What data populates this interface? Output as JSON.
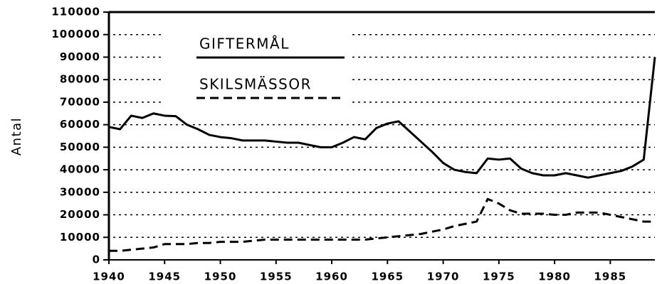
{
  "chart_data": {
    "type": "line",
    "y_label": "Antal",
    "x": [
      1940,
      1941,
      1942,
      1943,
      1944,
      1945,
      1946,
      1947,
      1948,
      1949,
      1950,
      1951,
      1952,
      1953,
      1954,
      1955,
      1956,
      1957,
      1958,
      1959,
      1960,
      1961,
      1962,
      1963,
      1964,
      1965,
      1966,
      1967,
      1968,
      1969,
      1970,
      1971,
      1972,
      1973,
      1974,
      1975,
      1976,
      1977,
      1978,
      1979,
      1980,
      1981,
      1982,
      1983,
      1984,
      1985,
      1986,
      1987,
      1988,
      1989
    ],
    "series": [
      {
        "name": "GIFTERMÅL",
        "color": "#000000",
        "style": "solid",
        "values": [
          59000,
          58000,
          64000,
          63000,
          65000,
          64000,
          63800,
          60000,
          58000,
          55500,
          54500,
          54000,
          53000,
          53000,
          53000,
          52500,
          52000,
          52000,
          51000,
          50000,
          50000,
          52000,
          54500,
          53500,
          58500,
          60500,
          61500,
          57000,
          52500,
          48000,
          43000,
          40000,
          39000,
          38500,
          45000,
          44500,
          45000,
          40500,
          38500,
          37500,
          37500,
          38500,
          37500,
          36500,
          37500,
          38500,
          39500,
          41500,
          44500,
          90000
        ]
      },
      {
        "name": "SKILSMÄSSOR",
        "color": "#000000",
        "style": "dashed",
        "values": [
          4000,
          4000,
          4500,
          5000,
          5500,
          7000,
          7000,
          7000,
          7500,
          7500,
          8000,
          8000,
          8000,
          8500,
          9000,
          9000,
          9000,
          9000,
          9000,
          9000,
          9000,
          9000,
          9000,
          9000,
          9500,
          10000,
          10500,
          11000,
          11500,
          12500,
          13500,
          15000,
          16000,
          17000,
          27000,
          25000,
          22000,
          20500,
          20500,
          20500,
          20000,
          20000,
          21000,
          21000,
          21000,
          20000,
          19000,
          18000,
          17000,
          17000
        ]
      }
    ],
    "xlim": [
      1940,
      1989
    ],
    "xticks": [
      1940,
      1945,
      1950,
      1955,
      1960,
      1965,
      1970,
      1975,
      1980,
      1985
    ],
    "ylim": [
      0,
      110000
    ],
    "yticks": [
      0,
      10000,
      20000,
      30000,
      40000,
      50000,
      60000,
      70000,
      80000,
      90000,
      100000,
      110000
    ],
    "grid": true
  }
}
